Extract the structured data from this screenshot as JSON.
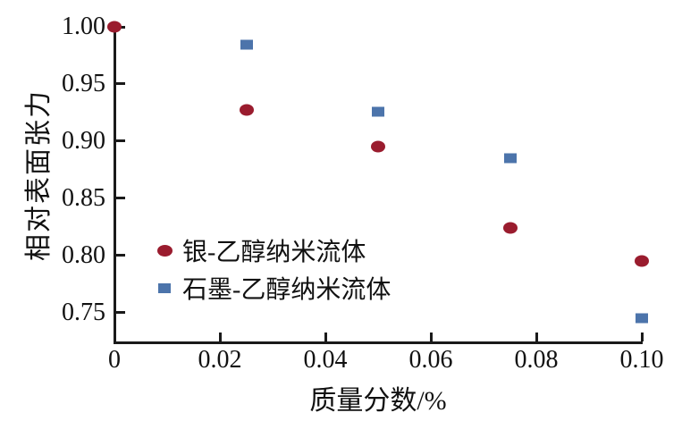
{
  "figure": {
    "background": "#ffffff",
    "axis_color": "#1a1a1a",
    "text_color": "#111111"
  },
  "chart_data": {
    "type": "scatter",
    "title": "",
    "xlabel": "质量分数/%",
    "ylabel": "相对表面张力",
    "xlim": [
      0,
      0.1
    ],
    "ylim": [
      0.724,
      1.0
    ],
    "grid": false,
    "legend_position": "inside-lower-left",
    "x_ticks": [
      0,
      0.02,
      0.04,
      0.06,
      0.08,
      0.1
    ],
    "x_tick_labels": [
      "0",
      "0.02",
      "0.04",
      "0.06",
      "0.08",
      "0.10"
    ],
    "y_ticks": [
      1.0,
      0.95,
      0.9,
      0.85,
      0.8,
      0.75
    ],
    "y_tick_labels": [
      "1.00",
      "0.95",
      "0.90",
      "0.85",
      "0.80",
      "0.75"
    ],
    "series": [
      {
        "name": "银-乙醇纳米流体",
        "marker": "circle",
        "color": "#9a1c2e",
        "points": [
          [
            0,
            1.0
          ],
          [
            0.025,
            0.927
          ],
          [
            0.05,
            0.895
          ],
          [
            0.075,
            0.824
          ],
          [
            0.1,
            0.795
          ]
        ]
      },
      {
        "name": "石墨-乙醇纳米流体",
        "marker": "square",
        "color": "#4c74ab",
        "points": [
          [
            0.025,
            0.984
          ],
          [
            0.05,
            0.926
          ],
          [
            0.075,
            0.885
          ],
          [
            0.1,
            0.745
          ]
        ]
      }
    ]
  }
}
